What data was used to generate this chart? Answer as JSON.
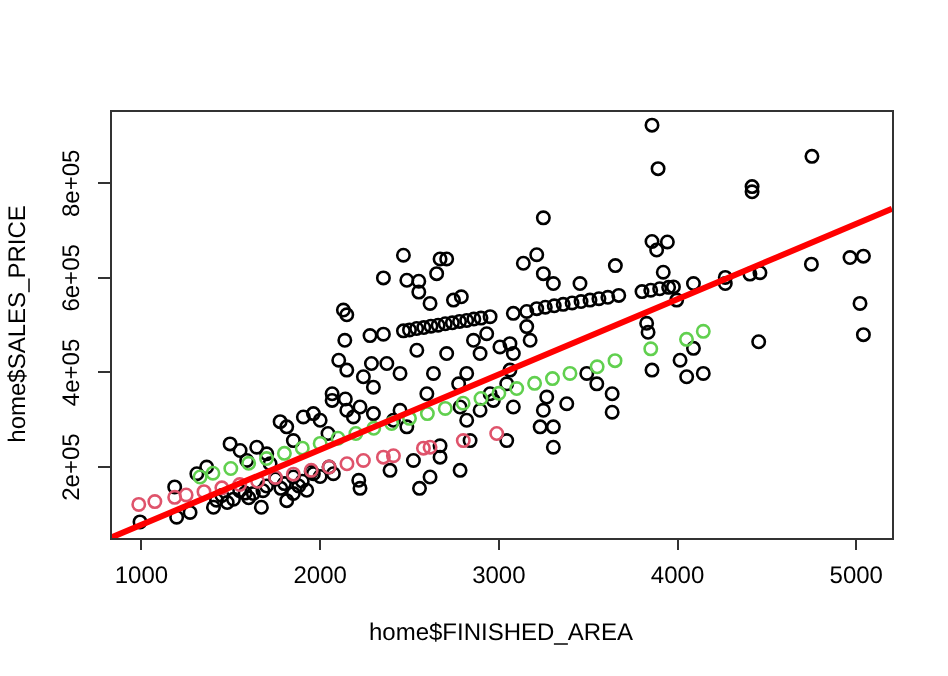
{
  "chart_data": {
    "type": "scatter",
    "xlabel": "home$FINISHED_AREA",
    "ylabel": "home$SALES_PRICE",
    "marker": "circle",
    "grid": false,
    "legend": false,
    "xlim": [
      824,
      5200
    ],
    "xticks": [
      1000,
      2000,
      3000,
      4000,
      5000
    ],
    "ylim": [
      50000,
      955000
    ],
    "yticks": [
      {
        "value": 200000,
        "label": "2e+05"
      },
      {
        "value": 400000,
        "label": "4e+05"
      },
      {
        "value": 600000,
        "label": "6e+05"
      },
      {
        "value": 800000,
        "label": "8e+05"
      }
    ],
    "series": [
      {
        "color": "#000000",
        "x": [
          3857,
          3891,
          4752,
          4417,
          4417,
          3249,
          3857,
          3943,
          3883,
          2466,
          2671,
          2708,
          3137,
          3212,
          3652,
          2354,
          2485,
          2552,
          2652,
          3249,
          3305,
          3920,
          2130,
          2149,
          2552,
          2615,
          2746,
          2790,
          3454,
          4267,
          5021,
          5040,
          4454,
          3995,
          3827,
          3835,
          4014,
          4051,
          4144,
          4089,
          3857,
          3634,
          3634,
          3548,
          3492,
          3305,
          3305,
          3249,
          3268,
          3380,
          3231,
          3175,
          3156,
          3081,
          3062,
          3044,
          3062,
          3044,
          3081,
          3006,
          2932,
          2895,
          2858,
          2820,
          2775,
          2708,
          2634,
          2597,
          2541,
          2447,
          2373,
          2287,
          2242,
          2298,
          2223,
          2149,
          2067,
          2067,
          2104,
          2149,
          2783,
          2615,
          2556,
          2391,
          2671,
          2522,
          2671,
          2223,
          2216,
          2074,
          1925,
          1813,
          1850,
          1671,
          1626,
          1496,
          1552,
          1645,
          1776,
          1813,
          1906,
          1962,
          2000,
          2044,
          1850,
          1701,
          1365,
          1310,
          1186,
          1197,
          992,
          1272,
          1403,
          1515,
          1850,
          1962,
          1720,
          1589,
          2447,
          2410,
          2485,
          2298,
          2186,
          2141,
          2820,
          2895,
          2783,
          2951,
          2839,
          2969,
          1450,
          1550,
          1600,
          1700,
          1750,
          1800,
          1900,
          1950,
          2000,
          2050,
          1420,
          1480,
          1580,
          1680,
          1780,
          1880
        ],
        "values": [
          923000,
          831000,
          857000,
          793000,
          782000,
          727000,
          677000,
          676000,
          659000,
          648000,
          640000,
          640000,
          631000,
          649000,
          626000,
          600000,
          595000,
          593000,
          609000,
          609000,
          588000,
          612000,
          532000,
          522000,
          570000,
          546000,
          553000,
          560000,
          588000,
          588000,
          546000,
          480000,
          465000,
          553000,
          504000,
          485000,
          426000,
          391000,
          398000,
          451000,
          405000,
          355000,
          316000,
          376000,
          398000,
          242000,
          285000,
          320000,
          348000,
          334000,
          285000,
          468000,
          497000,
          440000,
          461000,
          376000,
          405000,
          256000,
          327000,
          454000,
          482000,
          440000,
          468000,
          398000,
          376000,
          440000,
          398000,
          355000,
          447000,
          398000,
          419000,
          419000,
          391000,
          369000,
          327000,
          320000,
          355000,
          341000,
          426000,
          405000,
          193000,
          179000,
          155000,
          193000,
          221000,
          214000,
          245000,
          155000,
          172000,
          186000,
          151000,
          129000,
          144000,
          115000,
          144000,
          249000,
          235000,
          242000,
          296000,
          285000,
          306000,
          313000,
          299000,
          271000,
          256000,
          228000,
          200000,
          186000,
          158000,
          94000,
          84000,
          104000,
          115000,
          132000,
          179000,
          186000,
          207000,
          214000,
          320000,
          299000,
          285000,
          313000,
          306000,
          344000,
          299000,
          320000,
          327000,
          355000,
          256000,
          341000,
          140000,
          150000,
          135000,
          160000,
          175000,
          165000,
          170000,
          190000,
          180000,
          200000,
          130000,
          125000,
          145000,
          150000,
          155000,
          160000
        ]
      },
      {
        "color": "#df536b",
        "x": [
          985,
          1075,
          1186,
          1250,
          1350,
          1450,
          1550,
          1650,
          1750,
          1850,
          1950,
          2050,
          2150,
          2242,
          2354,
          2410,
          2578,
          2615,
          2801,
          2988
        ],
        "values": [
          121000,
          127000,
          136000,
          141000,
          148000,
          156000,
          163000,
          170000,
          178000,
          185000,
          193000,
          200000,
          207000,
          214000,
          221000,
          224000,
          240000,
          242000,
          256000,
          271000
        ]
      },
      {
        "color": "#61d04f",
        "x": [
          1328,
          1400,
          1500,
          1600,
          1700,
          1800,
          1900,
          2000,
          2100,
          2200,
          2300,
          2400,
          2500,
          2600,
          2700,
          2800,
          2900,
          3000,
          3100,
          3200,
          3300,
          3398,
          3550,
          3650,
          3850,
          4050,
          4144
        ],
        "values": [
          179000,
          187000,
          197000,
          208000,
          218000,
          229000,
          240000,
          250000,
          261000,
          271000,
          282000,
          292000,
          303000,
          313000,
          324000,
          335000,
          345000,
          356000,
          366000,
          377000,
          387000,
          398000,
          412000,
          425000,
          450000,
          470000,
          487000
        ]
      },
      {
        "color": "#000000",
        "x": [
          2138,
          2279,
          2354,
          2466,
          2500,
          2540,
          2580,
          2620,
          2660,
          2700,
          2740,
          2780,
          2820,
          2860,
          2900,
          2951,
          3081,
          3156,
          3212,
          3260,
          3310,
          3360,
          3410,
          3460,
          3510,
          3560,
          3610,
          3671,
          3801,
          3850,
          3900,
          3950,
          3977,
          4089,
          4267,
          4405,
          4461,
          4749,
          4965,
          5040
        ],
        "values": [
          468000,
          478000,
          481000,
          488000,
          490000,
          493000,
          495000,
          498000,
          500000,
          503000,
          505000,
          508000,
          510000,
          513000,
          515000,
          518000,
          525000,
          529000,
          535000,
          538000,
          541000,
          544000,
          547000,
          550000,
          553000,
          556000,
          559000,
          563000,
          571000,
          574000,
          577000,
          580000,
          581000,
          588000,
          601000,
          608000,
          611000,
          629000,
          643000,
          646000
        ]
      },
      {
        "type": "line",
        "marker": "none",
        "color": "#ff0000",
        "x": [
          824,
          5200
        ],
        "values": [
          50000,
          746000
        ]
      }
    ]
  }
}
